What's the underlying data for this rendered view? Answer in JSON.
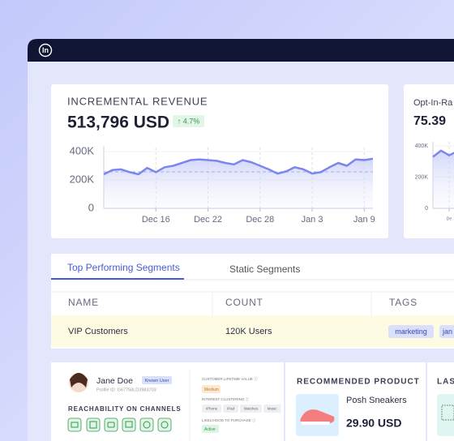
{
  "header": {
    "logo": "In"
  },
  "revenue_card": {
    "title": "INCREMENTAL REVENUE",
    "value": "513,796 USD",
    "change": "↑ 4.7%"
  },
  "opt_in_card": {
    "title": "Opt-In-Ra",
    "value": "75.39"
  },
  "chart_data": [
    {
      "type": "line",
      "color": "#7b86ee",
      "categories": [
        null,
        null,
        null,
        null,
        null,
        null,
        "Dec 16",
        null,
        null,
        null,
        null,
        null,
        "Dec 22",
        null,
        null,
        null,
        null,
        null,
        "Dec 28",
        null,
        null,
        null,
        null,
        null,
        "Jan 3",
        null,
        null,
        null,
        null,
        null,
        "Jan 9",
        null
      ],
      "values": [
        240000,
        270000,
        275000,
        255000,
        240000,
        285000,
        255000,
        290000,
        300000,
        320000,
        340000,
        345000,
        340000,
        335000,
        320000,
        310000,
        340000,
        325000,
        300000,
        275000,
        245000,
        260000,
        290000,
        275000,
        245000,
        255000,
        290000,
        320000,
        300000,
        345000,
        340000,
        350000
      ],
      "reference_line": 257000,
      "ylim": [
        0,
        400000
      ],
      "yticks": [
        {
          "value": 0,
          "label": "0"
        },
        {
          "value": 200000,
          "label": "200K"
        },
        {
          "value": 400000,
          "label": "400K"
        }
      ],
      "grid": true
    },
    {
      "type": "line",
      "color": "#7b86ee",
      "categories": [
        null,
        null,
        "De",
        null,
        null,
        null
      ],
      "values": [
        330000,
        370000,
        340000,
        365000,
        320000,
        355000
      ],
      "ylim": [
        0,
        400000
      ],
      "yticks": [
        {
          "value": 0,
          "label": "0"
        },
        {
          "value": 200000,
          "label": "200K"
        },
        {
          "value": 400000,
          "label": "400K"
        }
      ],
      "grid": true
    }
  ],
  "segments": {
    "tabs": [
      "Top Performing Segments",
      "Static Segments"
    ],
    "columns": [
      "NAME",
      "COUNT",
      "TAGS"
    ],
    "rows": [
      [
        "VIP Customers",
        "120K Users",
        [
          "marketing",
          "jan"
        ]
      ]
    ]
  },
  "profile": {
    "name": "Jane Doe",
    "badge": "Known User",
    "id": "Profile ID: G67758LD3983703",
    "reachability": "REACHABILITY ON CHANNELS",
    "clv_label": "CUSTOMER LIFETIME VALUE ⓘ",
    "clv": "Medium",
    "interest_label": "INTEREST CLUSTERING ⓘ",
    "interests": [
      "iPhone",
      "iPad",
      "Watches",
      "Music"
    ],
    "likelihood_label": "LIKELIHOOD TO PURCHASE ⓘ",
    "likelihood": "Active"
  },
  "recommended": {
    "title": "RECOMMENDED PRODUCT",
    "product": "Posh Sneakers",
    "price": "29.90 USD"
  },
  "last_card": {
    "title": "LAS"
  }
}
